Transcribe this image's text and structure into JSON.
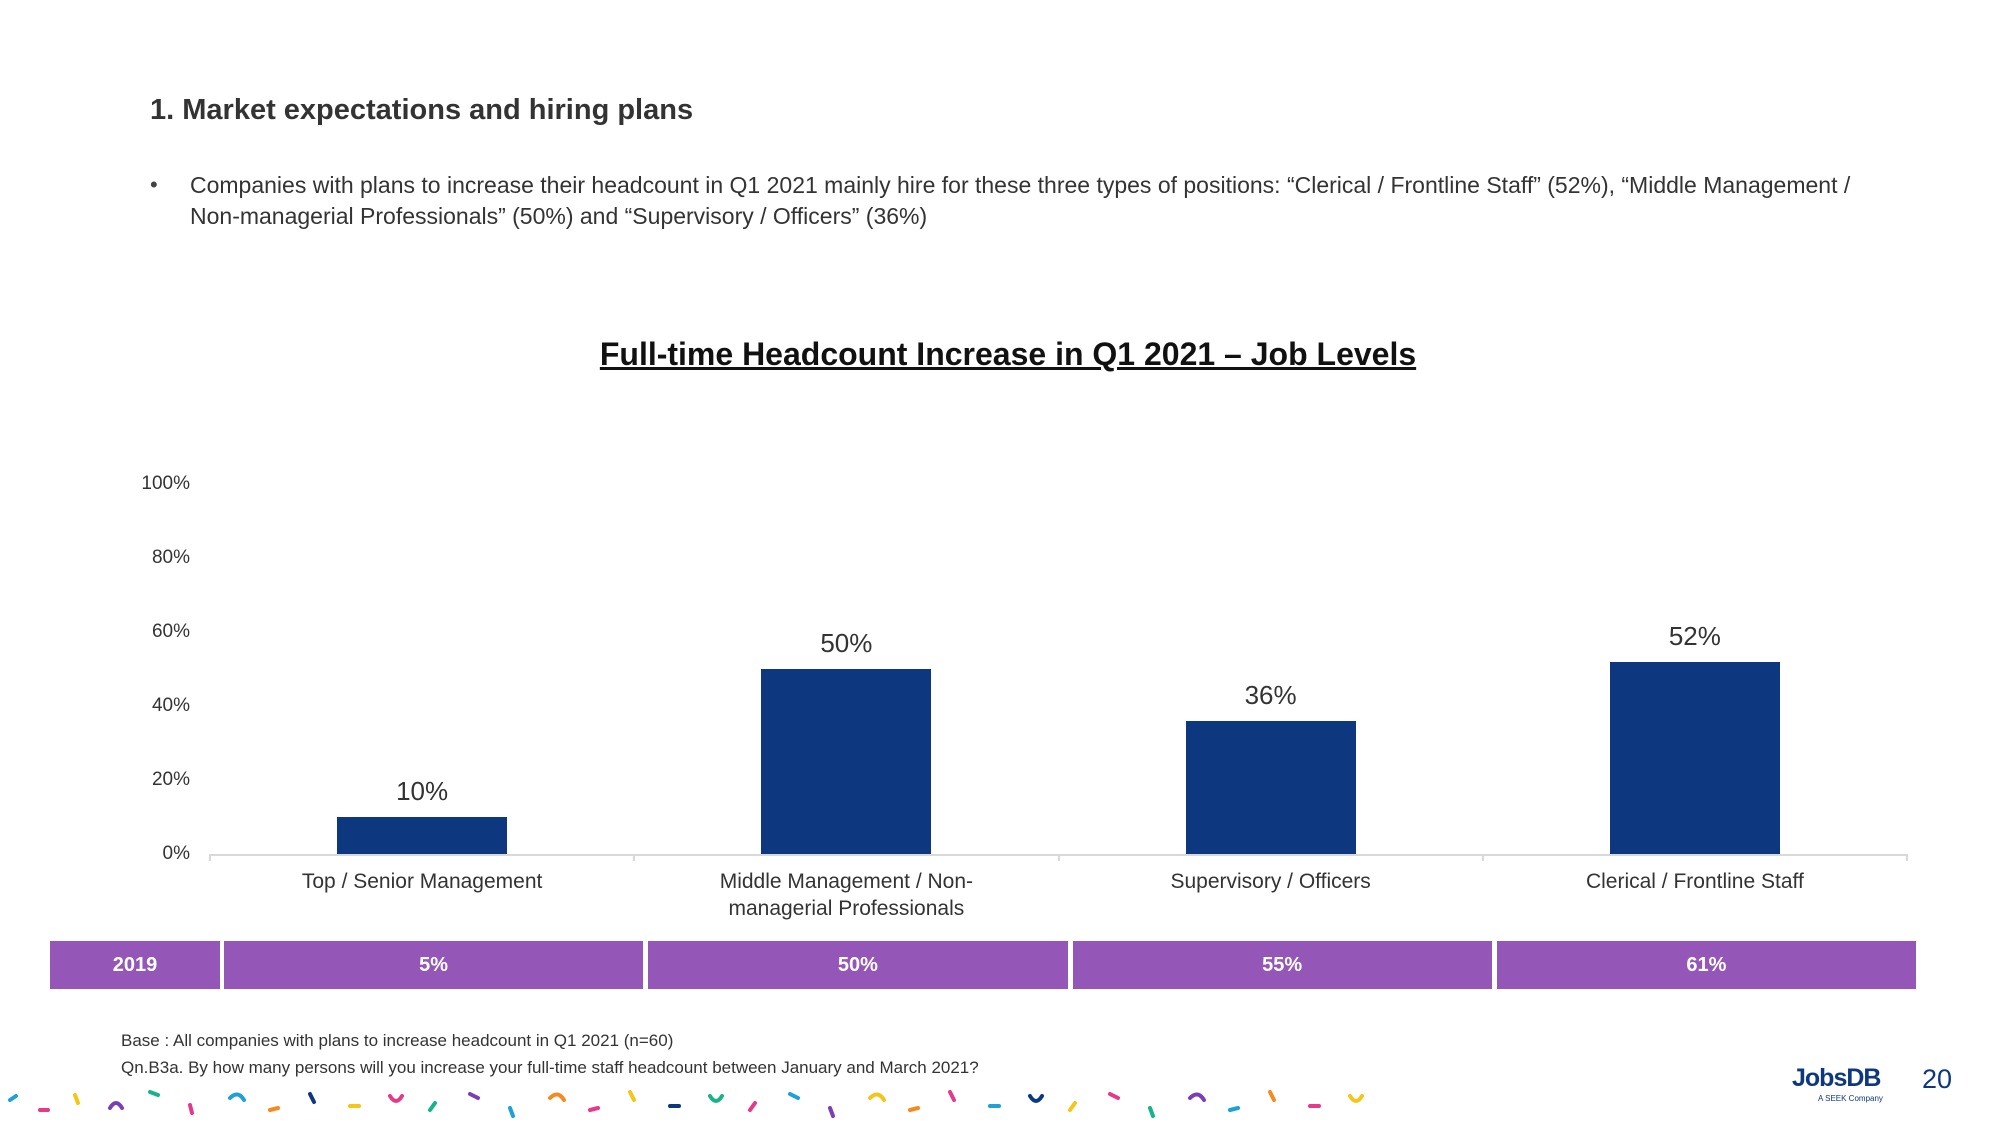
{
  "header": {
    "title": "1. Market expectations and hiring plans",
    "bullet": "Companies with plans to increase their headcount in Q1 2021 mainly hire for these three types of positions: “Clerical / Frontline Staff” (52%), “Middle Management / Non-managerial Professionals” (50%) and “Supervisory / Officers” (36%)"
  },
  "chart_data": {
    "type": "bar",
    "title": "Full-time Headcount Increase in Q1 2021 – Job Levels",
    "categories": [
      "Top / Senior Management",
      "Middle Management / Non-managerial Professionals",
      "Supervisory / Officers",
      "Clerical / Frontline Staff"
    ],
    "values": [
      10,
      50,
      36,
      52
    ],
    "value_labels": [
      "10%",
      "50%",
      "36%",
      "52%"
    ],
    "color": "#0d3880",
    "ylim": [
      0,
      100
    ],
    "yticks": [
      {
        "value": 0,
        "label": "0%"
      },
      {
        "value": 20,
        "label": "20%"
      },
      {
        "value": 40,
        "label": "40%"
      },
      {
        "value": 60,
        "label": "60%"
      },
      {
        "value": 80,
        "label": "80%"
      },
      {
        "value": 100,
        "label": "100%"
      }
    ],
    "grid": false
  },
  "comparison": {
    "label": "2019",
    "cells": [
      "5%",
      "50%",
      "55%",
      "61%"
    ],
    "color": "#9457b8"
  },
  "footer": {
    "base": "Base : All companies with plans to increase headcount in Q1 2021 (n=60)",
    "question": "Qn.B3a. By how many persons will you increase your full-time staff headcount between January and March 2021?",
    "logo": "JobsDB",
    "logo_sub": "A SEEK Company",
    "page": "20"
  }
}
